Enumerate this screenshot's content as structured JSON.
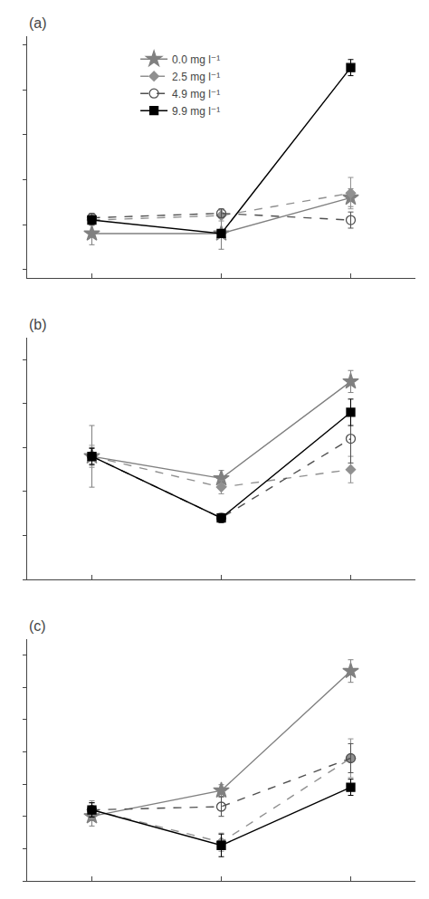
{
  "chart_data": [
    {
      "type": "line",
      "title": "(a)",
      "x": [
        0,
        1,
        2
      ],
      "xlim": [
        -0.5,
        2.5
      ],
      "xticks": [
        0,
        1,
        2
      ],
      "ylim": [
        3.8,
        9.2
      ],
      "yticks": [
        4,
        5,
        6,
        7,
        8,
        9
      ],
      "tick_labels": false,
      "grid": false,
      "legend": "upper left",
      "series": [
        {
          "name": "0.0 mg l⁻¹",
          "color": "#808080",
          "marker": "star",
          "line_style": "solid",
          "values": [
            4.8,
            4.8,
            5.6
          ],
          "yerr": [
            0.25,
            0.35,
            0.2
          ]
        },
        {
          "name": "2.5 mg l⁻¹",
          "color": "#909090",
          "marker": "diamond",
          "line_style": "dashed",
          "values": [
            5.1,
            5.2,
            5.7
          ],
          "yerr": [
            0.12,
            0.12,
            0.35
          ]
        },
        {
          "name": "4.9 mg l⁻¹",
          "color": "#505050",
          "marker": "circle-open",
          "line_style": "dashed",
          "values": [
            5.15,
            5.25,
            5.1
          ],
          "yerr": [
            0.1,
            0.1,
            0.18
          ]
        },
        {
          "name": "9.9 mg l⁻¹",
          "color": "#000000",
          "marker": "square",
          "line_style": "solid",
          "values": [
            5.1,
            4.8,
            8.5
          ],
          "yerr": [
            0.1,
            0.08,
            0.18
          ]
        }
      ]
    },
    {
      "type": "line",
      "title": "(b)",
      "x": [
        0,
        1,
        2
      ],
      "xlim": [
        -0.5,
        2.5
      ],
      "xticks": [
        0,
        1,
        2
      ],
      "ylim": [
        1.0,
        6.5
      ],
      "yticks": [
        1,
        2,
        3,
        4,
        5,
        6
      ],
      "tick_labels": false,
      "grid": false,
      "series": [
        {
          "color": "#808080",
          "marker": "star",
          "line_style": "solid",
          "values": [
            3.8,
            3.3,
            5.5
          ],
          "yerr": [
            0.7,
            0.18,
            0.25
          ]
        },
        {
          "color": "#909090",
          "marker": "diamond",
          "line_style": "dashed",
          "values": [
            3.8,
            3.1,
            3.5
          ],
          "yerr": [
            0.25,
            0.15,
            0.3
          ]
        },
        {
          "color": "#505050",
          "marker": "circle-open",
          "line_style": "dashed",
          "values": [
            3.8,
            2.4,
            4.2
          ],
          "yerr": [
            0.2,
            0.1,
            0.55
          ]
        },
        {
          "color": "#000000",
          "marker": "square",
          "line_style": "solid",
          "values": [
            3.8,
            2.4,
            4.8
          ],
          "yerr": [
            0.18,
            0.1,
            0.3
          ]
        }
      ]
    },
    {
      "type": "line",
      "title": "(c)",
      "x": [
        0,
        1,
        2
      ],
      "xlim": [
        -0.5,
        2.5
      ],
      "xticks": [
        0,
        1,
        2
      ],
      "ylim": [
        1.0,
        8.5
      ],
      "yticks": [
        1,
        2,
        3,
        4,
        5,
        6,
        7,
        8
      ],
      "tick_labels": false,
      "grid": false,
      "series": [
        {
          "color": "#808080",
          "marker": "star",
          "line_style": "solid",
          "values": [
            3.0,
            3.8,
            7.5
          ],
          "yerr": [
            0.3,
            0.18,
            0.35
          ]
        },
        {
          "color": "#909090",
          "marker": "diamond",
          "line_style": "dashed",
          "values": [
            3.2,
            2.2,
            4.8
          ],
          "yerr": [
            0.28,
            0.28,
            0.6
          ]
        },
        {
          "color": "#505050",
          "marker": "circle-open",
          "line_style": "dashed",
          "values": [
            3.2,
            3.3,
            4.8
          ],
          "yerr": [
            0.22,
            0.3,
            0.45
          ]
        },
        {
          "color": "#000000",
          "marker": "square",
          "line_style": "solid",
          "values": [
            3.2,
            2.1,
            3.9
          ],
          "yerr": [
            0.22,
            0.35,
            0.25
          ]
        }
      ]
    }
  ]
}
